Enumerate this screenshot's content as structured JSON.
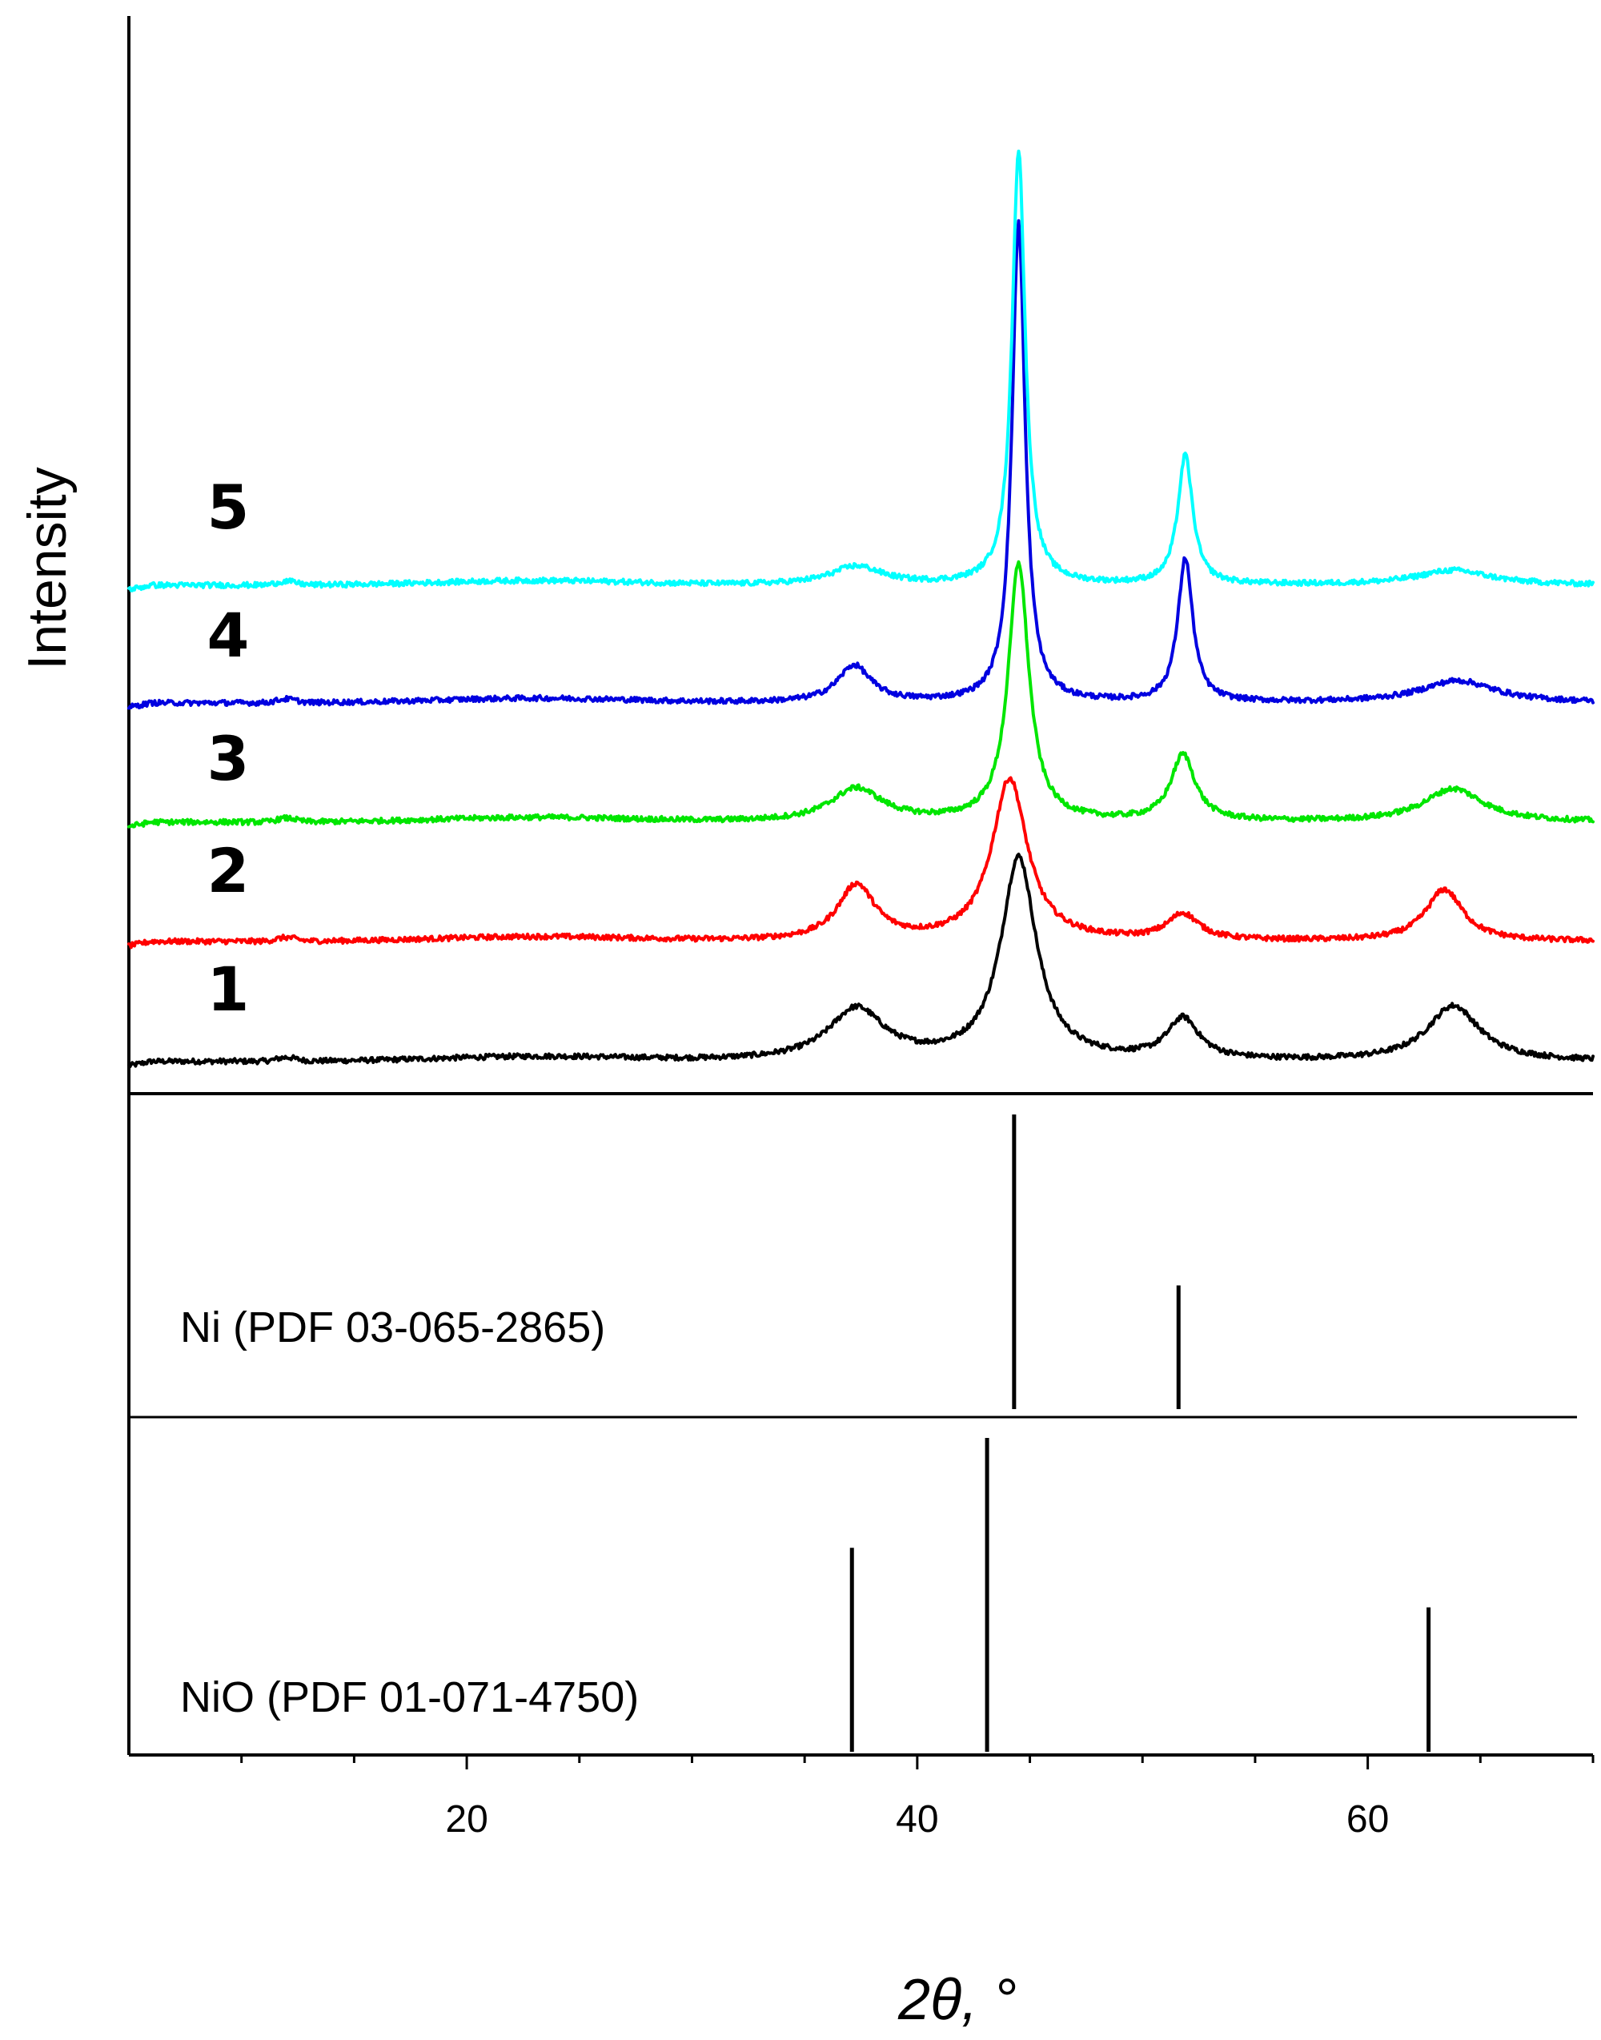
{
  "chart_data": {
    "type": "line",
    "title": "",
    "xlabel": "2θ, °",
    "ylabel": "Intensity",
    "xlim": [
      5,
      70
    ],
    "xticks": [
      20,
      40,
      60
    ],
    "colors": {
      "series_5": "#00ffff",
      "series_4": "#0000e0",
      "series_3": "#00e600",
      "series_2": "#ff0000",
      "series_1": "#000000",
      "reference": "#000000"
    },
    "series": [
      {
        "name": "1",
        "color": "#000000",
        "peaks": [
          {
            "two_theta": 37.3,
            "intensity": 0.14,
            "width": 1.5
          },
          {
            "two_theta": 44.5,
            "intensity": 0.55,
            "width": 0.95
          },
          {
            "two_theta": 51.8,
            "intensity": 0.11,
            "width": 0.85
          },
          {
            "two_theta": 63.8,
            "intensity": 0.15,
            "width": 1.4
          }
        ]
      },
      {
        "name": "2",
        "color": "#ff0000",
        "peaks": [
          {
            "two_theta": 37.3,
            "intensity": 0.15,
            "width": 1.0
          },
          {
            "two_theta": 44.1,
            "intensity": 0.44,
            "width": 0.95
          },
          {
            "two_theta": 51.8,
            "intensity": 0.07,
            "width": 0.85
          },
          {
            "two_theta": 63.4,
            "intensity": 0.14,
            "width": 1.0
          }
        ]
      },
      {
        "name": "3",
        "color": "#00e600",
        "peaks": [
          {
            "two_theta": 37.3,
            "intensity": 0.09,
            "width": 1.4
          },
          {
            "two_theta": 44.5,
            "intensity": 0.7,
            "width": 0.55
          },
          {
            "two_theta": 51.8,
            "intensity": 0.18,
            "width": 0.65
          },
          {
            "two_theta": 63.8,
            "intensity": 0.09,
            "width": 1.6
          }
        ]
      },
      {
        "name": "4",
        "color": "#0000e0",
        "peaks": [
          {
            "two_theta": 37.2,
            "intensity": 0.1,
            "width": 0.9
          },
          {
            "two_theta": 44.5,
            "intensity": 1.3,
            "width": 0.35
          },
          {
            "two_theta": 51.9,
            "intensity": 0.39,
            "width": 0.4
          },
          {
            "two_theta": 64.0,
            "intensity": 0.06,
            "width": 2.0
          }
        ]
      },
      {
        "name": "5",
        "color": "#00ffff",
        "peaks": [
          {
            "two_theta": 37.3,
            "intensity": 0.05,
            "width": 1.4
          },
          {
            "two_theta": 44.5,
            "intensity": 1.18,
            "width": 0.35
          },
          {
            "two_theta": 51.9,
            "intensity": 0.35,
            "width": 0.4
          },
          {
            "two_theta": 63.8,
            "intensity": 0.04,
            "width": 2.0
          }
        ]
      }
    ],
    "references": [
      {
        "label": "Ni (PDF 03-065-2865)",
        "lines": [
          {
            "two_theta": 44.3,
            "relative_intensity": 100
          },
          {
            "two_theta": 51.6,
            "relative_intensity": 42
          }
        ]
      },
      {
        "label": "NiO (PDF 01-071-4750)",
        "lines": [
          {
            "two_theta": 37.1,
            "relative_intensity": 65
          },
          {
            "two_theta": 43.1,
            "relative_intensity": 100
          },
          {
            "two_theta": 62.7,
            "relative_intensity": 46
          }
        ]
      }
    ]
  }
}
